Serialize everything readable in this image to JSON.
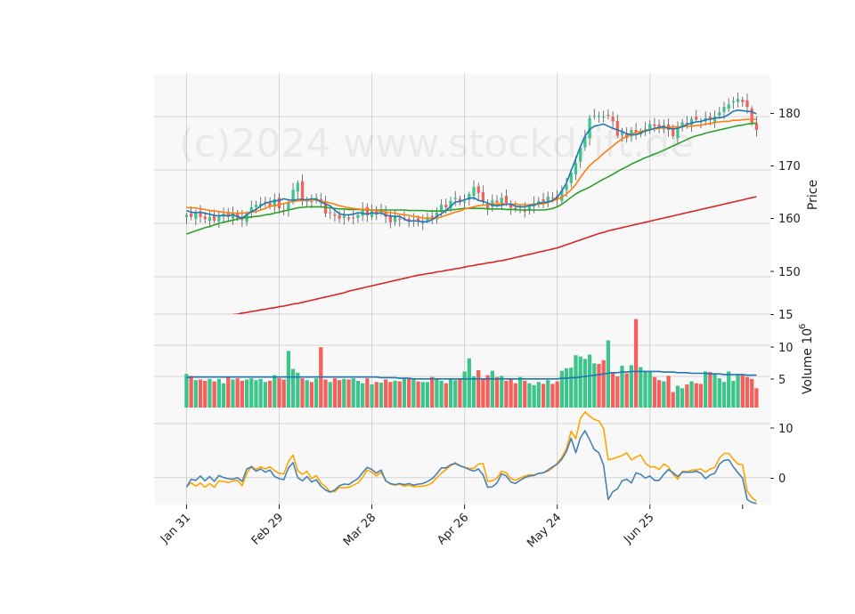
{
  "watermark": "(c)2024 www.stockdrift.de",
  "colors": {
    "panel_bg": "#f8f8f8",
    "grid": "#d3d3d3",
    "up": "#3cc58b",
    "down": "#f5605d",
    "ma_short": "#1f77b4",
    "ma_mid": "#ff7f0e",
    "ma_long": "#2ca02c",
    "ma_200": "#d62728",
    "vol_avg": "#1f77b4",
    "osc_fast": "#4682b4",
    "osc_slow": "#ffa500"
  },
  "x_ticks": [
    "Jan 31",
    "Feb 29",
    "Mar 28",
    "Apr 26",
    "May 24",
    "Jun 25"
  ],
  "price_panel": {
    "ylabel": "Price",
    "ticks": [
      "150",
      "160",
      "170",
      "180"
    ]
  },
  "volume_panel": {
    "ylabel": "Volume  10",
    "exponent": "6",
    "ticks": [
      "5",
      "10",
      "15"
    ]
  },
  "oscillator_panel": {
    "ticks": [
      "0",
      "10"
    ]
  },
  "chart_data": [
    {
      "type": "candlestick",
      "ylabel": "Price",
      "ylim": [
        143,
        188
      ],
      "x_range": [
        -7,
        126
      ],
      "x_tick_positions": [
        0,
        20,
        40,
        60,
        80,
        100
      ],
      "x_tick_labels": [
        "Jan 31",
        "Feb 29",
        "Mar 28",
        "Apr 26",
        "May 24",
        "Jun 25"
      ],
      "grid": true,
      "close": [
        161.6,
        161.2,
        162.0,
        161.2,
        160.8,
        161.2,
        160.5,
        161.4,
        161.8,
        161.2,
        161.9,
        161.0,
        160.6,
        161.8,
        163.0,
        163.5,
        163.7,
        164.0,
        163.2,
        164.5,
        162.8,
        162.4,
        163.8,
        166.3,
        167.6,
        164.1,
        164.4,
        164.0,
        164.8,
        164.2,
        161.8,
        162.0,
        161.4,
        160.9,
        161.4,
        160.8,
        161.1,
        161.6,
        162.7,
        161.5,
        162.3,
        161.9,
        162.6,
        161.2,
        160.2,
        161.2,
        160.7,
        161.0,
        160.5,
        160.6,
        160.3,
        160.4,
        161.2,
        161.1,
        162.0,
        163.5,
        163.0,
        164.2,
        164.8,
        164.0,
        164.1,
        165.5,
        166.8,
        165.7,
        164.0,
        162.8,
        164.3,
        163.9,
        164.8,
        163.8,
        162.9,
        162.8,
        163.0,
        162.2,
        163.1,
        163.8,
        164.2,
        164.1,
        165.0,
        164.8,
        164.5,
        166.2,
        167.3,
        169.5,
        171.3,
        174.2,
        176.2,
        179.7,
        180.2,
        180.1,
        180.0,
        180.3,
        179.1,
        176.4,
        177.1,
        176.0,
        177.5,
        176.9,
        177.3,
        177.7,
        178.6,
        178.2,
        178.0,
        178.4,
        177.5,
        176.3,
        177.9,
        178.9,
        178.6,
        179.6,
        179.4,
        179.1,
        179.7,
        179.4,
        180.0,
        180.8,
        181.8,
        182.3,
        182.9,
        183.3,
        182.7,
        181.8,
        178.7,
        177.5
      ],
      "sma_short": [
        162.4,
        162.1,
        162.0,
        162.1,
        161.9,
        161.7,
        161.5,
        161.4,
        161.5,
        161.4,
        161.6,
        161.3,
        161.0,
        161.6,
        162.2,
        162.6,
        163.3,
        163.8,
        164.0,
        164.2,
        164.3,
        164.6,
        164.4,
        164.3,
        164.5,
        164.5,
        164.4,
        164.6,
        164.5,
        164.0,
        163.6,
        163.3,
        162.5,
        161.8,
        161.6,
        161.6,
        161.7,
        162.0,
        161.9,
        161.7,
        162.0,
        161.8,
        162.0,
        161.5,
        161.4,
        161.3,
        161.3,
        160.8,
        160.4,
        160.5,
        160.4,
        160.3,
        160.3,
        160.7,
        161.3,
        161.8,
        162.4,
        163.2,
        164.0,
        164.1,
        164.4,
        164.7,
        164.8,
        164.3,
        164.1,
        163.8,
        163.4,
        163.3,
        163.4,
        163.6,
        163.6,
        163.2,
        163.1,
        163.1,
        163.3,
        163.4,
        163.8,
        163.9,
        164.0,
        164.3,
        164.9,
        166.1,
        167.6,
        169.9,
        172.1,
        174.4,
        176.3,
        177.6,
        178.2,
        178.4,
        178.6,
        178.2,
        177.8,
        177.5,
        177.2,
        176.8,
        176.6,
        176.6,
        176.9,
        177.3,
        177.5,
        177.8,
        178.0,
        178.1,
        177.8,
        177.7,
        177.8,
        178.1,
        178.5,
        178.8,
        179.0,
        179.1,
        179.4,
        179.5,
        179.7,
        179.8,
        179.9,
        180.4,
        181.0,
        181.2,
        181.1,
        181.0,
        180.9,
        180.5
      ],
      "sma_mid": [
        163.0,
        162.9,
        162.9,
        162.7,
        162.6,
        162.4,
        162.3,
        162.2,
        162.1,
        162.0,
        161.9,
        161.9,
        161.9,
        162.0,
        162.1,
        162.2,
        162.5,
        162.8,
        163.2,
        163.3,
        163.5,
        163.7,
        163.9,
        164.1,
        164.2,
        164.3,
        164.3,
        164.4,
        164.4,
        164.2,
        164.0,
        163.8,
        163.6,
        163.3,
        163.1,
        162.9,
        162.8,
        162.7,
        162.6,
        162.6,
        162.5,
        162.4,
        162.3,
        162.1,
        162.0,
        161.9,
        161.7,
        161.6,
        161.5,
        161.3,
        161.2,
        161.0,
        160.9,
        160.9,
        161.0,
        161.2,
        161.5,
        161.8,
        162.1,
        162.3,
        162.7,
        162.9,
        163.1,
        163.3,
        163.4,
        163.5,
        163.6,
        163.6,
        163.7,
        163.6,
        163.6,
        163.6,
        163.5,
        163.5,
        163.5,
        163.6,
        163.6,
        163.7,
        163.9,
        164.2,
        164.5,
        164.9,
        165.5,
        166.3,
        167.3,
        168.6,
        169.8,
        170.8,
        171.6,
        172.3,
        173.1,
        173.8,
        174.5,
        175.2,
        175.8,
        176.3,
        176.7,
        177.0,
        177.2,
        177.4,
        177.6,
        177.7,
        177.8,
        177.9,
        178.0,
        178.1,
        178.1,
        178.1,
        178.2,
        178.2,
        178.3,
        178.4,
        178.6,
        178.7,
        178.9,
        179.0,
        179.1,
        179.1,
        179.3,
        179.3,
        179.4,
        179.5,
        179.5,
        179.5
      ],
      "sma_long": [
        158.0,
        158.3,
        158.6,
        158.9,
        159.2,
        159.4,
        159.7,
        160.0,
        160.2,
        160.4,
        160.6,
        160.8,
        161.0,
        161.1,
        161.2,
        161.3,
        161.4,
        161.6,
        161.7,
        161.9,
        162.1,
        162.3,
        162.5,
        162.7,
        162.9,
        163.0,
        163.1,
        163.1,
        163.1,
        163.1,
        163.0,
        162.9,
        162.8,
        162.7,
        162.7,
        162.6,
        162.6,
        162.6,
        162.6,
        162.5,
        162.5,
        162.5,
        162.5,
        162.5,
        162.5,
        162.5,
        162.5,
        162.5,
        162.4,
        162.4,
        162.4,
        162.4,
        162.3,
        162.3,
        162.3,
        162.3,
        162.4,
        162.5,
        162.6,
        162.7,
        162.8,
        162.8,
        162.8,
        162.8,
        162.8,
        162.7,
        162.7,
        162.7,
        162.7,
        162.6,
        162.6,
        162.6,
        162.5,
        162.5,
        162.5,
        162.5,
        162.5,
        162.5,
        162.6,
        162.8,
        163.1,
        163.6,
        164.2,
        164.9,
        165.5,
        166.0,
        166.4,
        166.8,
        167.3,
        167.8,
        168.3,
        168.7,
        169.2,
        169.7,
        170.2,
        170.6,
        171.1,
        171.5,
        171.9,
        172.3,
        172.6,
        173.0,
        173.3,
        173.7,
        174.1,
        174.5,
        174.9,
        175.3,
        175.7,
        176.1,
        176.4,
        176.6,
        176.9,
        177.1,
        177.3,
        177.5,
        177.7,
        177.9,
        178.1,
        178.3,
        178.4,
        178.6,
        178.7,
        178.8
      ],
      "sma_200": [
        141.4,
        141.5,
        141.7,
        141.8,
        142.0,
        142.1,
        142.3,
        142.4,
        142.6,
        142.7,
        142.9,
        143.0,
        143.2,
        143.3,
        143.5,
        143.6,
        143.8,
        143.9,
        144.1,
        144.2,
        144.4,
        144.5,
        144.7,
        144.9,
        145.0,
        145.2,
        145.4,
        145.6,
        145.8,
        146.0,
        146.2,
        146.4,
        146.6,
        146.8,
        147.0,
        147.3,
        147.5,
        147.7,
        147.9,
        148.1,
        148.3,
        148.5,
        148.7,
        148.9,
        149.1,
        149.3,
        149.5,
        149.7,
        149.9,
        150.1,
        150.3,
        150.4,
        150.6,
        150.7,
        150.9,
        151.0,
        151.2,
        151.3,
        151.5,
        151.6,
        151.8,
        152.0,
        152.1,
        152.3,
        152.4,
        152.6,
        152.7,
        152.9,
        153.0,
        153.2,
        153.4,
        153.6,
        153.8,
        154.0,
        154.2,
        154.4,
        154.6,
        154.8,
        155.0,
        155.2,
        155.4,
        155.7,
        156.0,
        156.3,
        156.6,
        156.9,
        157.2,
        157.5,
        157.8,
        158.1,
        158.3,
        158.6,
        158.8,
        159.0,
        159.2,
        159.4,
        159.6,
        159.8,
        160.0,
        160.2,
        160.4,
        160.6,
        160.8,
        161.0,
        161.2,
        161.4,
        161.6,
        161.8,
        162.0,
        162.2,
        162.4,
        162.6,
        162.8,
        163.0,
        163.2,
        163.4,
        163.6,
        163.8,
        164.0,
        164.2,
        164.4,
        164.6,
        164.8,
        165.0
      ]
    },
    {
      "type": "bar",
      "ylabel": "Volume",
      "unit": "10^6",
      "ylim": [
        0,
        15
      ],
      "values": [
        5.4,
        5.1,
        4.4,
        4.5,
        4.3,
        4.6,
        4.2,
        4.6,
        3.9,
        4.8,
        4.5,
        4.7,
        4.3,
        4.5,
        4.7,
        4.4,
        4.6,
        4.1,
        4.3,
        5.2,
        4.7,
        4.5,
        9.1,
        6.2,
        5.6,
        4.7,
        4.4,
        4.1,
        4.7,
        9.7,
        4.5,
        4.1,
        4.7,
        4.4,
        4.6,
        4.5,
        4.7,
        4.3,
        3.9,
        4.7,
        3.7,
        4.1,
        4.0,
        4.5,
        4.1,
        4.3,
        4.2,
        4.8,
        4.7,
        4.6,
        4.2,
        4.1,
        4.1,
        4.9,
        4.6,
        4.3,
        3.9,
        4.6,
        4.4,
        4.7,
        5.8,
        7.9,
        5.0,
        6.0,
        4.7,
        5.2,
        5.9,
        4.9,
        5.1,
        4.3,
        4.5,
        3.9,
        4.9,
        4.3,
        3.9,
        3.6,
        4.1,
        3.8,
        4.4,
        3.8,
        4.2,
        5.9,
        6.3,
        6.4,
        8.4,
        8.2,
        7.8,
        8.5,
        7.1,
        7.0,
        7.6,
        10.8,
        5.6,
        5.0,
        6.7,
        5.5,
        6.8,
        14.2,
        6.5,
        5.9,
        5.8,
        4.9,
        4.4,
        4.2,
        5.1,
        2.5,
        3.5,
        3.1,
        3.7,
        4.2,
        3.9,
        3.8,
        5.8,
        5.7,
        5.5,
        4.7,
        4.1,
        5.8,
        4.3,
        5.3,
        5.2,
        4.9,
        4.6,
        3.1
      ],
      "average": [
        4.8,
        4.9,
        4.9,
        4.9,
        4.9,
        4.9,
        4.9,
        4.9,
        4.9,
        4.9,
        4.9,
        4.9,
        4.9,
        4.9,
        4.9,
        4.9,
        4.9,
        4.9,
        4.9,
        4.9,
        4.9,
        4.9,
        4.9,
        4.9,
        4.9,
        4.9,
        4.9,
        4.9,
        4.9,
        4.9,
        4.9,
        4.9,
        4.9,
        4.9,
        4.9,
        4.9,
        4.9,
        4.9,
        4.9,
        4.9,
        4.9,
        4.9,
        4.8,
        4.8,
        4.8,
        4.8,
        4.7,
        4.7,
        4.7,
        4.6,
        4.6,
        4.6,
        4.6,
        4.6,
        4.6,
        4.6,
        4.6,
        4.6,
        4.6,
        4.6,
        4.6,
        4.6,
        4.6,
        4.6,
        4.6,
        4.6,
        4.6,
        4.6,
        4.6,
        4.6,
        4.6,
        4.6,
        4.6,
        4.6,
        4.6,
        4.6,
        4.6,
        4.6,
        4.6,
        4.6,
        4.6,
        4.7,
        4.7,
        4.8,
        4.8,
        4.9,
        5.0,
        5.1,
        5.2,
        5.3,
        5.4,
        5.5,
        5.6,
        5.6,
        5.7,
        5.7,
        5.8,
        5.8,
        5.8,
        5.8,
        5.8,
        5.8,
        5.8,
        5.7,
        5.7,
        5.7,
        5.6,
        5.6,
        5.6,
        5.5,
        5.5,
        5.5,
        5.5,
        5.4,
        5.4,
        5.4,
        5.3,
        5.3,
        5.3,
        5.3,
        5.3,
        5.2,
        5.2,
        5.2
      ]
    },
    {
      "type": "line",
      "ylim": [
        -5,
        13
      ],
      "fast": [
        -1.8,
        -0.3,
        -0.5,
        0.3,
        -0.6,
        0.2,
        -0.7,
        0.4,
        0.0,
        -0.2,
        -0.3,
        0.0,
        -0.7,
        1.6,
        2.0,
        1.2,
        1.6,
        1.0,
        1.4,
        0.2,
        -0.2,
        -0.4,
        1.8,
        2.8,
        0.0,
        -0.6,
        0.2,
        -0.8,
        -0.4,
        -1.6,
        -2.3,
        -2.7,
        -2.3,
        -1.5,
        -1.2,
        -1.3,
        -0.7,
        -0.2,
        0.9,
        1.9,
        1.5,
        0.8,
        1.4,
        -0.6,
        -1.1,
        -1.3,
        -1.1,
        -1.3,
        -1.1,
        -1.4,
        -1.2,
        -1.1,
        -0.7,
        -0.2,
        0.7,
        1.8,
        1.8,
        2.4,
        2.6,
        2.2,
        1.9,
        1.5,
        1.2,
        1.6,
        0.5,
        -1.8,
        -1.7,
        -1.0,
        0.7,
        0.3,
        -0.8,
        -1.1,
        -0.5,
        0.0,
        0.3,
        0.4,
        0.8,
        0.9,
        1.4,
        2.0,
        2.5,
        3.4,
        4.9,
        7.3,
        4.6,
        7.4,
        8.7,
        7.0,
        5.2,
        4.6,
        2.3,
        -4.1,
        -2.6,
        -2.1,
        -0.6,
        -0.3,
        -1.0,
        0.9,
        0.6,
        -0.1,
        0.3,
        -0.5,
        -0.5,
        0.6,
        1.5,
        0.9,
        0.2,
        1.0,
        1.0,
        1.0,
        1.2,
        0.8,
        -0.2,
        0.5,
        0.8,
        2.5,
        3.2,
        3.3,
        2.0,
        0.9,
        -0.1,
        -4.1,
        -4.6,
        -4.8
      ],
      "slow": [
        -1.6,
        -1.0,
        -1.6,
        -1.0,
        -1.8,
        -1.1,
        -1.8,
        -0.6,
        -0.7,
        -0.9,
        -0.6,
        -0.5,
        -1.5,
        0.8,
        2.1,
        1.5,
        2.0,
        1.6,
        2.0,
        1.3,
        0.8,
        0.7,
        3.0,
        4.2,
        1.3,
        0.6,
        1.2,
        -0.2,
        0.4,
        -1.0,
        -1.7,
        -2.6,
        -2.6,
        -1.8,
        -1.9,
        -1.8,
        -1.4,
        -1.0,
        0.0,
        1.4,
        1.0,
        0.3,
        1.0,
        -0.6,
        -1.2,
        -1.4,
        -1.2,
        -1.6,
        -1.4,
        -1.7,
        -1.6,
        -1.6,
        -1.4,
        -1.0,
        0.0,
        0.8,
        1.5,
        2.2,
        2.8,
        2.2,
        1.9,
        1.7,
        1.7,
        2.5,
        2.6,
        -0.7,
        -0.6,
        -0.1,
        1.2,
        0.9,
        -0.2,
        -0.5,
        -0.1,
        0.3,
        0.5,
        0.5,
        0.8,
        0.9,
        1.2,
        1.8,
        2.7,
        3.8,
        5.4,
        8.6,
        7.2,
        11.0,
        12.2,
        11.4,
        10.8,
        10.5,
        9.1,
        3.3,
        3.5,
        3.8,
        4.1,
        4.6,
        3.3,
        3.8,
        4.2,
        2.7,
        2.0,
        2.0,
        1.5,
        2.5,
        2.0,
        0.6,
        -0.3,
        1.2,
        1.1,
        1.4,
        1.4,
        1.6,
        1.0,
        1.6,
        1.9,
        3.6,
        4.5,
        4.5,
        3.4,
        2.5,
        2.4,
        -2.5,
        -3.7,
        -4.4
      ]
    }
  ]
}
